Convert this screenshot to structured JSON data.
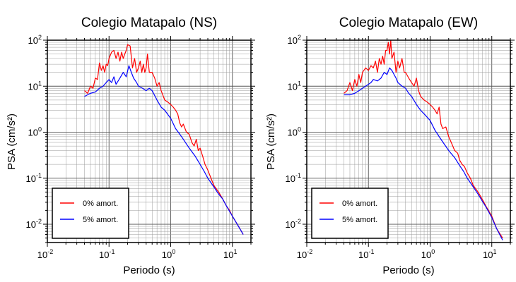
{
  "chart_data": [
    {
      "type": "line",
      "title": "Colegio Matapalo (NS)",
      "xlabel": "Periodo (s)",
      "ylabel": "PSA (cm/s²)",
      "xscale": "log",
      "yscale": "log",
      "xlim": [
        0.01,
        20
      ],
      "ylim": [
        0.004,
        100
      ],
      "x_ticks": [
        {
          "base": "10",
          "exp": "-2",
          "value": 0.01
        },
        {
          "base": "10",
          "exp": "-1",
          "value": 0.1
        },
        {
          "base": "10",
          "exp": "0",
          "value": 1
        },
        {
          "base": "10",
          "exp": "1",
          "value": 10
        }
      ],
      "y_ticks": [
        {
          "base": "10",
          "exp": "-2",
          "value": 0.01
        },
        {
          "base": "10",
          "exp": "-1",
          "value": 0.1
        },
        {
          "base": "10",
          "exp": "0",
          "value": 1
        },
        {
          "base": "10",
          "exp": "1",
          "value": 10
        },
        {
          "base": "10",
          "exp": "2",
          "value": 100
        }
      ],
      "grid": true,
      "legend_position": "bottom-left",
      "series": [
        {
          "name": "0% amort.",
          "color": "#ff0000",
          "x": [
            0.04,
            0.045,
            0.05,
            0.055,
            0.06,
            0.065,
            0.07,
            0.075,
            0.08,
            0.085,
            0.09,
            0.095,
            0.1,
            0.11,
            0.12,
            0.13,
            0.14,
            0.15,
            0.16,
            0.17,
            0.18,
            0.19,
            0.2,
            0.22,
            0.24,
            0.26,
            0.28,
            0.3,
            0.32,
            0.34,
            0.36,
            0.38,
            0.4,
            0.42,
            0.45,
            0.5,
            0.55,
            0.6,
            0.65,
            0.7,
            0.8,
            0.9,
            1.0,
            1.1,
            1.2,
            1.3,
            1.4,
            1.5,
            1.6,
            1.8,
            2.0,
            2.2,
            2.4,
            2.6,
            2.8,
            3.0,
            3.3,
            3.6,
            4.0,
            4.5,
            5,
            6,
            7,
            8,
            9,
            10,
            12,
            15
          ],
          "y": [
            8,
            7,
            10,
            9,
            15,
            14,
            32,
            22,
            28,
            20,
            30,
            28,
            40,
            55,
            60,
            40,
            55,
            35,
            55,
            40,
            50,
            60,
            80,
            75,
            25,
            40,
            20,
            25,
            35,
            20,
            30,
            20,
            25,
            50,
            20,
            20,
            15,
            10,
            12,
            8,
            5,
            4.5,
            4,
            3.5,
            3,
            2.5,
            1.6,
            1.3,
            1.5,
            1.0,
            0.9,
            0.6,
            0.5,
            0.7,
            0.4,
            0.45,
            0.3,
            0.2,
            0.15,
            0.1,
            0.07,
            0.05,
            0.035,
            0.025,
            0.02,
            0.015,
            0.01,
            0.006
          ]
        },
        {
          "name": "5% amort.",
          "color": "#0000ff",
          "x": [
            0.04,
            0.05,
            0.06,
            0.07,
            0.08,
            0.09,
            0.1,
            0.11,
            0.12,
            0.13,
            0.15,
            0.17,
            0.19,
            0.21,
            0.23,
            0.25,
            0.28,
            0.3,
            0.35,
            0.4,
            0.45,
            0.5,
            0.6,
            0.7,
            0.8,
            1.0,
            1.2,
            1.5,
            2.0,
            2.5,
            3.0,
            3.5,
            4,
            5,
            6,
            7,
            8,
            10,
            12,
            15
          ],
          "y": [
            6,
            7,
            7.5,
            9,
            10,
            12,
            14,
            12,
            16,
            11,
            15,
            20,
            16,
            28,
            20,
            15,
            12,
            10,
            9,
            8,
            9,
            8,
            5,
            3.5,
            3,
            2,
            1.2,
            0.8,
            0.45,
            0.3,
            0.2,
            0.14,
            0.1,
            0.065,
            0.045,
            0.035,
            0.025,
            0.015,
            0.01,
            0.006
          ]
        }
      ]
    },
    {
      "type": "line",
      "title": "Colegio Matapalo (EW)",
      "xlabel": "Periodo (s)",
      "ylabel": "PSA (cm/s²)",
      "xscale": "log",
      "yscale": "log",
      "xlim": [
        0.01,
        20
      ],
      "ylim": [
        0.004,
        100
      ],
      "x_ticks": [
        {
          "base": "10",
          "exp": "-2",
          "value": 0.01
        },
        {
          "base": "10",
          "exp": "-1",
          "value": 0.1
        },
        {
          "base": "10",
          "exp": "0",
          "value": 1
        },
        {
          "base": "10",
          "exp": "1",
          "value": 10
        }
      ],
      "y_ticks": [
        {
          "base": "10",
          "exp": "-2",
          "value": 0.01
        },
        {
          "base": "10",
          "exp": "-1",
          "value": 0.1
        },
        {
          "base": "10",
          "exp": "0",
          "value": 1
        },
        {
          "base": "10",
          "exp": "1",
          "value": 10
        },
        {
          "base": "10",
          "exp": "2",
          "value": 100
        }
      ],
      "grid": true,
      "legend_position": "bottom-left",
      "series": [
        {
          "name": "0% amort.",
          "color": "#ff0000",
          "x": [
            0.04,
            0.045,
            0.05,
            0.055,
            0.06,
            0.065,
            0.07,
            0.075,
            0.08,
            0.09,
            0.1,
            0.11,
            0.12,
            0.13,
            0.14,
            0.15,
            0.16,
            0.17,
            0.18,
            0.19,
            0.2,
            0.21,
            0.22,
            0.23,
            0.24,
            0.26,
            0.28,
            0.3,
            0.32,
            0.35,
            0.38,
            0.4,
            0.45,
            0.5,
            0.55,
            0.6,
            0.65,
            0.7,
            0.8,
            0.9,
            1.0,
            1.1,
            1.2,
            1.3,
            1.4,
            1.5,
            1.6,
            1.8,
            2.0,
            2.2,
            2.5,
            2.8,
            3.0,
            3.3,
            3.6,
            4,
            4.5,
            5,
            6,
            7,
            8,
            10,
            12,
            15
          ],
          "y": [
            7,
            8,
            12,
            8,
            14,
            10,
            18,
            12,
            20,
            25,
            22,
            28,
            25,
            35,
            20,
            40,
            30,
            45,
            30,
            60,
            60,
            90,
            50,
            100,
            40,
            55,
            20,
            35,
            25,
            40,
            20,
            20,
            15,
            12,
            10,
            15,
            8,
            6,
            5,
            4.5,
            4,
            3.5,
            3,
            2.5,
            3.5,
            1.5,
            1.2,
            1.3,
            0.8,
            0.6,
            0.4,
            0.35,
            0.25,
            0.2,
            0.18,
            0.13,
            0.1,
            0.07,
            0.05,
            0.035,
            0.025,
            0.015,
            0.008,
            0.005
          ]
        },
        {
          "name": "5% amort.",
          "color": "#0000ff",
          "x": [
            0.04,
            0.05,
            0.06,
            0.07,
            0.08,
            0.09,
            0.1,
            0.11,
            0.12,
            0.14,
            0.16,
            0.18,
            0.2,
            0.22,
            0.24,
            0.26,
            0.28,
            0.3,
            0.35,
            0.4,
            0.45,
            0.5,
            0.6,
            0.7,
            0.8,
            1.0,
            1.2,
            1.5,
            2.0,
            2.5,
            3.0,
            3.5,
            4,
            5,
            6,
            7,
            8,
            10,
            12,
            15
          ],
          "y": [
            6.5,
            6.5,
            7,
            8,
            9,
            10,
            11,
            12,
            14,
            13,
            15,
            20,
            18,
            25,
            22,
            18,
            15,
            12,
            10,
            9,
            7,
            6,
            4,
            3,
            2.5,
            1.8,
            1.1,
            0.7,
            0.4,
            0.28,
            0.19,
            0.14,
            0.1,
            0.065,
            0.045,
            0.032,
            0.024,
            0.014,
            0.008,
            0.0045
          ]
        }
      ]
    }
  ]
}
